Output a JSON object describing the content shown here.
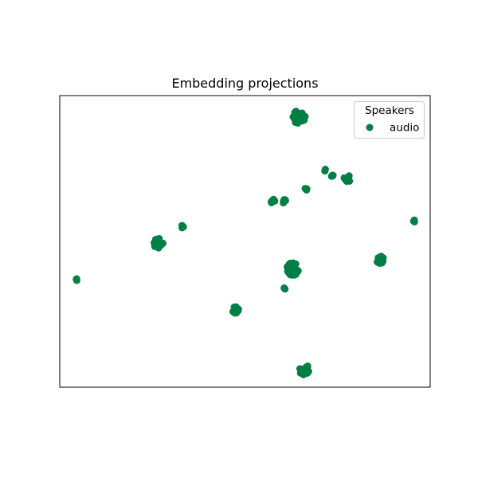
{
  "chart_data": {
    "type": "scatter",
    "title": "Embedding projections",
    "xlabel": "",
    "ylabel": "",
    "xticks": false,
    "yticks": false,
    "grid": false,
    "xlim": [
      0,
      100
    ],
    "ylim": [
      0,
      100
    ],
    "legend": {
      "title": "Speakers",
      "placement": "top-right",
      "entries": [
        {
          "label": "audio",
          "color": "#007f44"
        }
      ]
    },
    "series": [
      {
        "name": "audio",
        "color": "#007f44",
        "clusters": [
          {
            "x": 64.5,
            "y": 92.8,
            "spread": 2.4,
            "n": 40
          },
          {
            "x": 71.5,
            "y": 74.5,
            "spread": 0.4,
            "n": 2
          },
          {
            "x": 73.5,
            "y": 72.5,
            "spread": 0.6,
            "n": 4
          },
          {
            "x": 77.5,
            "y": 71.5,
            "spread": 1.3,
            "n": 10
          },
          {
            "x": 66.5,
            "y": 67.8,
            "spread": 0.5,
            "n": 3
          },
          {
            "x": 57.5,
            "y": 63.8,
            "spread": 0.7,
            "n": 6
          },
          {
            "x": 60.5,
            "y": 63.8,
            "spread": 0.7,
            "n": 5
          },
          {
            "x": 95.5,
            "y": 57.0,
            "spread": 0.5,
            "n": 3
          },
          {
            "x": 33.0,
            "y": 55.0,
            "spread": 0.5,
            "n": 3
          },
          {
            "x": 26.5,
            "y": 49.5,
            "spread": 1.8,
            "n": 22
          },
          {
            "x": 86.5,
            "y": 43.8,
            "spread": 1.4,
            "n": 18
          },
          {
            "x": 62.8,
            "y": 40.5,
            "spread": 2.2,
            "n": 45
          },
          {
            "x": 60.5,
            "y": 33.8,
            "spread": 0.5,
            "n": 2
          },
          {
            "x": 4.5,
            "y": 37.0,
            "spread": 0.5,
            "n": 3
          },
          {
            "x": 47.5,
            "y": 26.5,
            "spread": 1.3,
            "n": 14
          },
          {
            "x": 66.0,
            "y": 6.0,
            "spread": 1.8,
            "n": 22
          }
        ]
      }
    ]
  }
}
